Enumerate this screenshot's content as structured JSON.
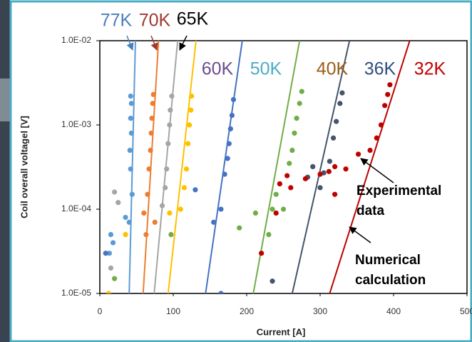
{
  "chart_data": {
    "type": "scatter",
    "y_axis_label": "Coil overall voltagel [V]",
    "x_axis_label": "Current [A]",
    "xlim": [
      0,
      500
    ],
    "xticks": [
      0,
      100,
      200,
      300,
      400,
      500
    ],
    "ylim": [
      1e-05,
      0.01
    ],
    "log_y": true,
    "yticks": [
      {
        "value": 1e-05,
        "label": "1.0E-05"
      },
      {
        "value": 0.0001,
        "label": "1.0E-04"
      },
      {
        "value": 0.001,
        "label": "1.0E-03"
      },
      {
        "value": 0.01,
        "label": "1.0E-02"
      }
    ],
    "series": [
      {
        "name": "77K",
        "color": "#5b9bd5",
        "label_color": "#4a7ebb",
        "fit_x": [
          40,
          48.5
        ],
        "fit_values": [
          1e-05,
          0.01
        ],
        "x": [
          42,
          43,
          42,
          43,
          41,
          42,
          44,
          40,
          35,
          18,
          15,
          13
        ],
        "values": [
          0.0022,
          0.0018,
          0.0012,
          0.0008,
          0.0005,
          0.0003,
          0.00015,
          7e-05,
          8e-05,
          4e-05,
          5e-05,
          3e-05
        ]
      },
      {
        "name": "70K",
        "color": "#ed7d31",
        "label_color": "#a0392f",
        "fit_x": [
          59,
          80
        ],
        "fit_values": [
          1e-05,
          0.01
        ],
        "x": [
          73,
          72,
          71,
          70,
          69,
          67,
          65,
          60,
          63,
          75
        ],
        "values": [
          0.0023,
          0.0018,
          0.0012,
          0.0008,
          0.0005,
          0.0003,
          0.00015,
          9e-05,
          5e-05,
          7e-05
        ]
      },
      {
        "name": "65K",
        "color": "#a5a5a5",
        "label_color": "#000000",
        "fit_x": [
          74,
          106
        ],
        "fit_values": [
          1e-05,
          0.01
        ],
        "x": [
          98,
          96,
          95,
          93,
          91,
          89,
          85,
          25,
          15,
          20
        ],
        "values": [
          0.0022,
          0.0015,
          0.001,
          0.0006,
          0.0003,
          0.00018,
          0.00011,
          0.00012,
          2e-05,
          0.00016
        ]
      },
      {
        "name": "60K",
        "color": "#ffc000",
        "label_color": "#6a4e8a",
        "fit_x": [
          93,
          131
        ],
        "fit_values": [
          1e-05,
          0.01
        ],
        "x": [
          125,
          124,
          122,
          120,
          118,
          115,
          110,
          95,
          35,
          12
        ],
        "values": [
          0.0022,
          0.0015,
          0.001,
          0.0006,
          0.0003,
          0.00018,
          0.0001,
          9e-05,
          5e-05,
          1e-05
        ]
      },
      {
        "name": "50K",
        "color": "#4472c4",
        "label_color": "#4bacc6",
        "fit_x": [
          144,
          194
        ],
        "fit_values": [
          1e-05,
          0.01
        ],
        "x": [
          182,
          180,
          178,
          176,
          174,
          170,
          165,
          155,
          130,
          165,
          8
        ],
        "values": [
          0.002,
          0.0013,
          0.0009,
          0.0006,
          0.0004,
          0.00026,
          0.0001,
          7e-05,
          0.00017,
          1e-05,
          3e-05
        ]
      },
      {
        "name": "40K",
        "color": "#70ad47",
        "label_color": "#9c5b17",
        "fit_x": [
          209,
          272
        ],
        "fit_values": [
          1e-05,
          0.01
        ],
        "x": [
          275,
          272,
          268,
          265,
          262,
          258,
          245,
          240,
          235,
          230,
          190,
          212,
          250,
          97,
          20
        ],
        "values": [
          0.0025,
          0.0018,
          0.0012,
          0.0008,
          0.0005,
          0.00035,
          0.0002,
          0.00015,
          0.0001,
          5e-05,
          6e-05,
          9e-05,
          0.0001,
          5e-05,
          1.5e-05
        ]
      },
      {
        "name": "36K",
        "color": "#44546a",
        "label_color": "#2f4f7f",
        "fit_x": [
          262,
          340
        ],
        "fit_values": [
          1e-05,
          0.01
        ],
        "x": [
          330,
          327,
          322,
          318,
          313,
          305,
          290,
          283,
          300,
          235
        ],
        "values": [
          0.0024,
          0.0018,
          0.0011,
          0.0007,
          0.00037,
          0.00027,
          0.00032,
          0.00024,
          0.00018,
          1.4e-05
        ]
      },
      {
        "name": "32K",
        "color": "#c00000",
        "label_color": "#c00000",
        "fit_x": [
          313,
          422
        ],
        "fit_values": [
          1e-05,
          0.01
        ],
        "x": [
          395,
          392,
          388,
          383,
          377,
          368,
          352,
          335,
          320,
          312,
          300,
          280,
          260,
          255,
          245,
          320,
          240,
          220
        ],
        "values": [
          0.003,
          0.0023,
          0.0017,
          0.001,
          0.0007,
          0.0005,
          0.00045,
          0.0003,
          0.00032,
          0.00028,
          0.00026,
          0.00023,
          0.00018,
          0.00025,
          0.0002,
          0.00015,
          9e-05,
          3e-05
        ]
      }
    ],
    "annotations": [
      [
        "Experimental",
        "data"
      ],
      [
        "Numerical",
        "calculation"
      ]
    ]
  }
}
